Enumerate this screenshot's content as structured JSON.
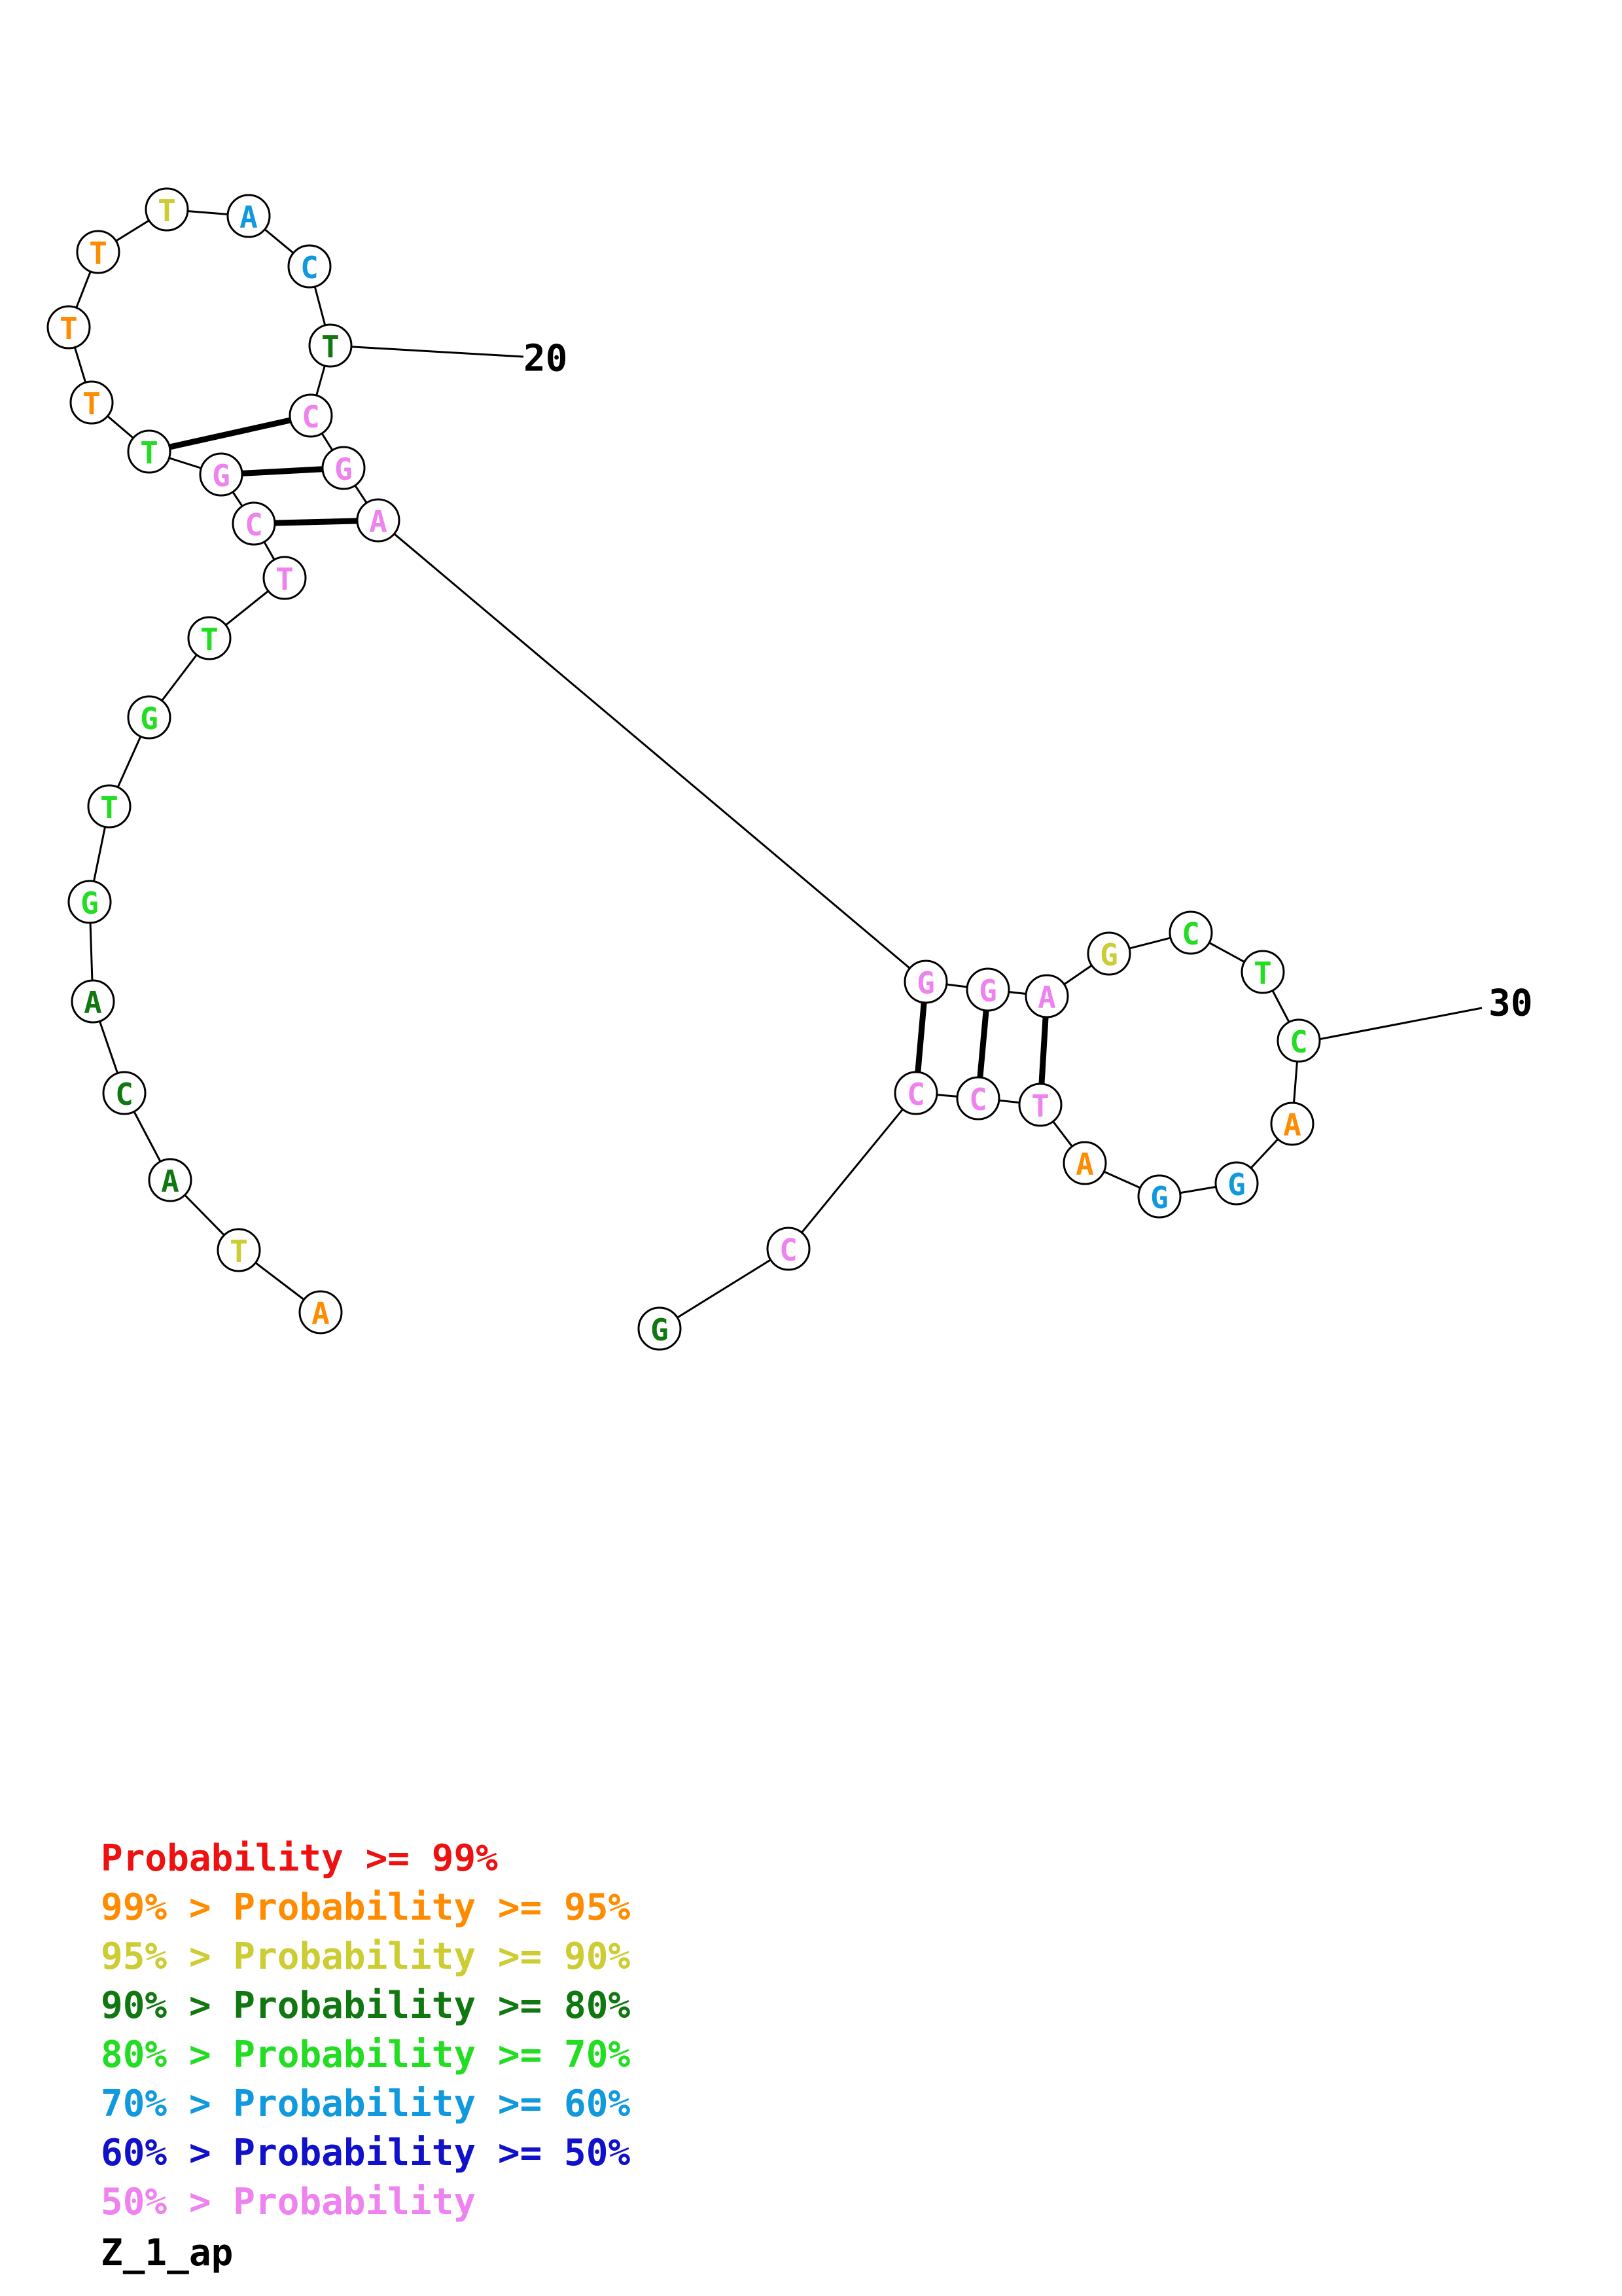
{
  "diagram": {
    "type": "rna-secondary-structure",
    "sequence_name": "Z_1_ap",
    "index_labels": [
      "20",
      "30"
    ],
    "nucleotides": [
      {
        "base": "A",
        "color": "#ff8c00"
      },
      {
        "base": "T",
        "color": "#cccc33"
      },
      {
        "base": "A",
        "color": "#117711"
      },
      {
        "base": "C",
        "color": "#117711"
      },
      {
        "base": "A",
        "color": "#117711"
      },
      {
        "base": "G",
        "color": "#22dd22"
      },
      {
        "base": "T",
        "color": "#22dd22"
      },
      {
        "base": "G",
        "color": "#22dd22"
      },
      {
        "base": "T",
        "color": "#22dd22"
      },
      {
        "base": "T",
        "color": "#ee82ee"
      },
      {
        "base": "C",
        "color": "#ee82ee"
      },
      {
        "base": "G",
        "color": "#ee82ee"
      },
      {
        "base": "T",
        "color": "#22dd22"
      },
      {
        "base": "T",
        "color": "#ff8c00"
      },
      {
        "base": "T",
        "color": "#ff8c00"
      },
      {
        "base": "T",
        "color": "#ff8c00"
      },
      {
        "base": "T",
        "color": "#cccc33"
      },
      {
        "base": "A",
        "color": "#1199dd"
      },
      {
        "base": "C",
        "color": "#1199dd"
      },
      {
        "base": "T",
        "color": "#117711"
      },
      {
        "base": "C",
        "color": "#ee82ee"
      },
      {
        "base": "G",
        "color": "#ee82ee"
      },
      {
        "base": "A",
        "color": "#ee82ee"
      },
      {
        "base": "G",
        "color": "#ee82ee"
      },
      {
        "base": "G",
        "color": "#ee82ee"
      },
      {
        "base": "A",
        "color": "#ee82ee"
      },
      {
        "base": "G",
        "color": "#cccc33"
      },
      {
        "base": "C",
        "color": "#22dd22"
      },
      {
        "base": "T",
        "color": "#22dd22"
      },
      {
        "base": "C",
        "color": "#22dd22"
      },
      {
        "base": "A",
        "color": "#ff8c00"
      },
      {
        "base": "G",
        "color": "#1199dd"
      },
      {
        "base": "G",
        "color": "#1199dd"
      },
      {
        "base": "A",
        "color": "#ff8c00"
      },
      {
        "base": "T",
        "color": "#ee82ee"
      },
      {
        "base": "C",
        "color": "#ee82ee"
      },
      {
        "base": "C",
        "color": "#ee82ee"
      },
      {
        "base": "C",
        "color": "#ee82ee"
      },
      {
        "base": "G",
        "color": "#117711"
      }
    ],
    "base_pairs": [
      [
        10,
        22
      ],
      [
        11,
        21
      ],
      [
        12,
        20
      ],
      [
        23,
        36
      ],
      [
        24,
        35
      ],
      [
        25,
        34
      ]
    ]
  },
  "legend": [
    {
      "prefix": "",
      "label": "Probability >= 99%",
      "color": "#ee1111"
    },
    {
      "prefix": "99% > ",
      "label": "Probability >= 95%",
      "color": "#ff8c00"
    },
    {
      "prefix": "95% > ",
      "label": "Probability >= 90%",
      "color": "#cccc33"
    },
    {
      "prefix": "90% > ",
      "label": "Probability >= 80%",
      "color": "#117711"
    },
    {
      "prefix": "80% > ",
      "label": "Probability >= 70%",
      "color": "#22dd22"
    },
    {
      "prefix": "70% > ",
      "label": "Probability >= 60%",
      "color": "#1199dd"
    },
    {
      "prefix": "60% > ",
      "label": "Probability >= 50%",
      "color": "#1111cc"
    },
    {
      "prefix": "50% > ",
      "label": "Probability",
      "color": "#ee82ee"
    }
  ]
}
